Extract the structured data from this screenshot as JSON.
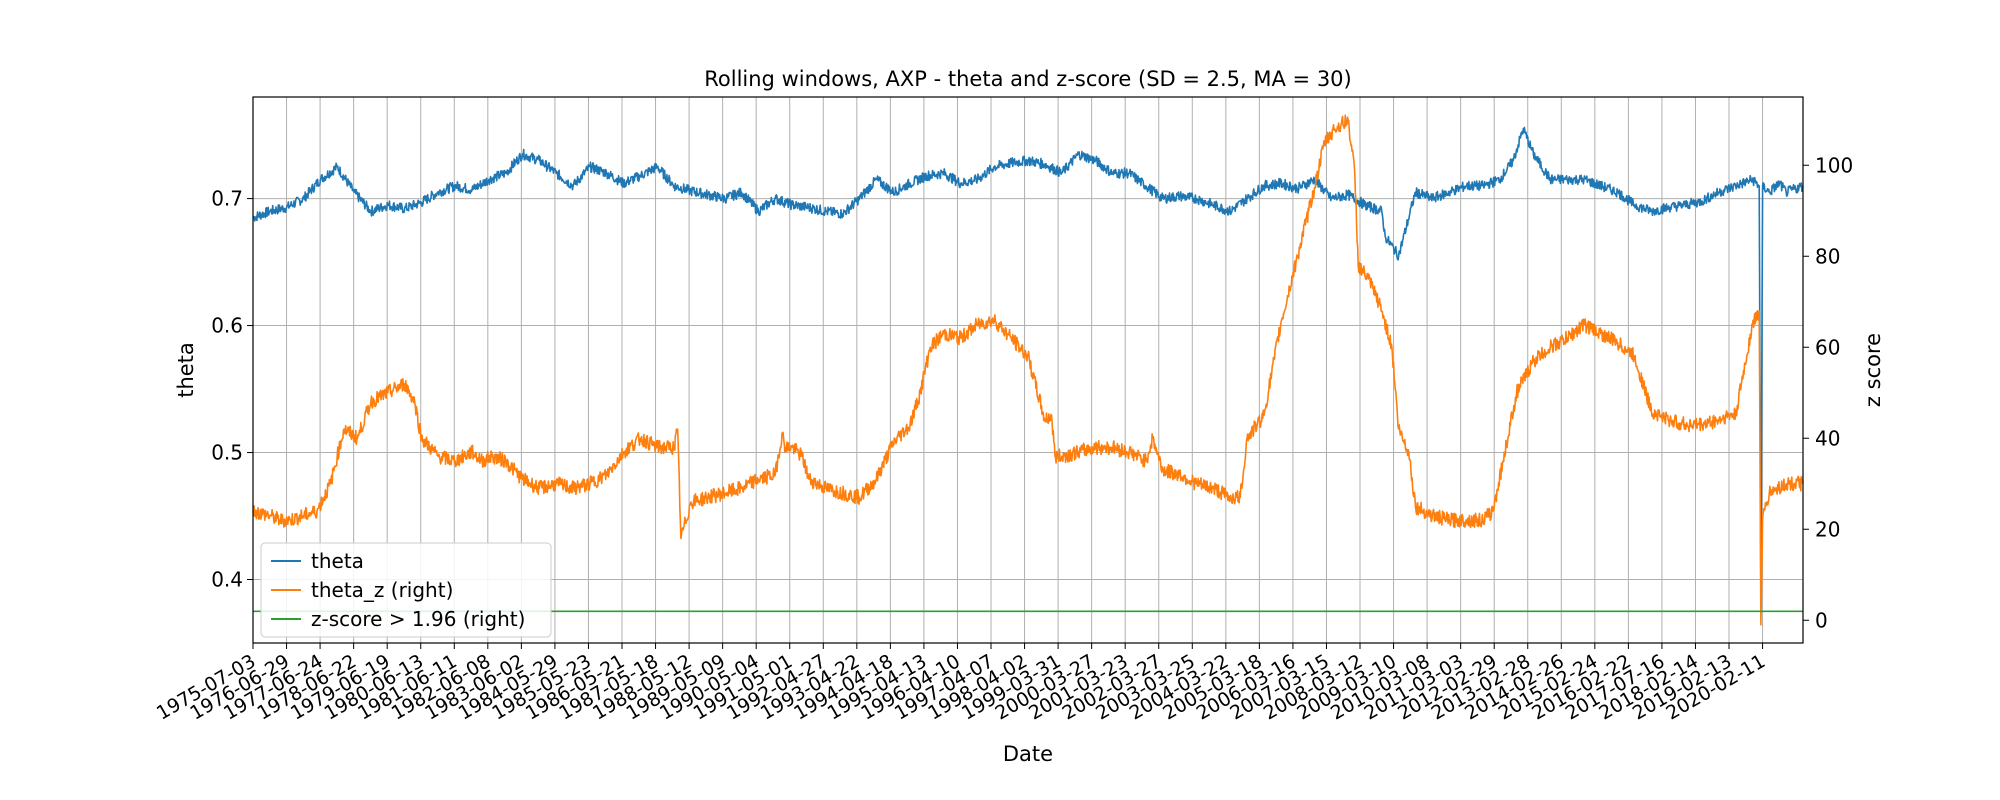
{
  "chart_data": {
    "type": "line",
    "title": "Rolling windows, AXP - theta and z-score (SD = 2.5, MA = 30)",
    "xlabel": "Date",
    "ylabel_left": "theta",
    "ylabel_right": "z score",
    "grid": true,
    "legend_position": "lower-left",
    "ylim_left": [
      0.35,
      0.78
    ],
    "ylim_right": [
      -5,
      115
    ],
    "yticks_left": [
      0.4,
      0.5,
      0.6,
      0.7
    ],
    "yticks_left_labels": [
      "0.4",
      "0.5",
      "0.6",
      "0.7"
    ],
    "yticks_right": [
      0,
      20,
      40,
      60,
      80,
      100
    ],
    "yticks_right_labels": [
      "0",
      "20",
      "40",
      "60",
      "80",
      "100"
    ],
    "xticks": [
      "1975-07-03",
      "1976-06-29",
      "1977-06-24",
      "1978-06-22",
      "1979-06-19",
      "1980-06-13",
      "1981-06-11",
      "1982-06-08",
      "1983-06-02",
      "1984-05-29",
      "1985-05-23",
      "1986-05-21",
      "1987-05-18",
      "1988-05-12",
      "1989-05-09",
      "1990-05-04",
      "1991-05-01",
      "1992-04-27",
      "1993-04-22",
      "1994-04-18",
      "1995-04-13",
      "1996-04-10",
      "1997-04-07",
      "1998-04-02",
      "1999-03-31",
      "2000-03-27",
      "2001-03-23",
      "2002-03-27",
      "2003-03-25",
      "2004-03-22",
      "2005-03-18",
      "2006-03-16",
      "2007-03-15",
      "2008-03-12",
      "2009-03-10",
      "2010-03-08",
      "2011-03-03",
      "2012-02-29",
      "2013-02-28",
      "2014-02-26",
      "2015-02-24",
      "2016-02-22",
      "2017-07-16",
      "2018-02-14",
      "2019-02-13",
      "2020-02-11"
    ],
    "x_range_years": [
      1975.5,
      2021.5
    ],
    "series": [
      {
        "name": "theta",
        "axis": "left",
        "color": "#1f77b4",
        "x": [
          1975.5,
          1976.0,
          1976.5,
          1977.0,
          1977.5,
          1978.0,
          1978.5,
          1979.0,
          1979.5,
          1980.0,
          1980.5,
          1981.0,
          1981.5,
          1982.0,
          1982.5,
          1983.0,
          1983.5,
          1984.0,
          1984.5,
          1985.0,
          1985.5,
          1986.0,
          1986.5,
          1987.0,
          1987.5,
          1988.0,
          1988.5,
          1989.0,
          1989.5,
          1990.0,
          1990.5,
          1991.0,
          1991.5,
          1992.0,
          1992.5,
          1993.0,
          1993.5,
          1994.0,
          1994.5,
          1995.0,
          1995.5,
          1996.0,
          1996.5,
          1997.0,
          1997.5,
          1998.0,
          1998.5,
          1999.0,
          1999.5,
          2000.0,
          2000.5,
          2001.0,
          2001.5,
          2002.0,
          2002.5,
          2003.0,
          2003.5,
          2004.0,
          2004.5,
          2005.0,
          2005.5,
          2006.0,
          2006.5,
          2007.0,
          2007.5,
          2008.0,
          2008.5,
          2009.0,
          2009.1,
          2009.5,
          2010.0,
          2010.5,
          2011.0,
          2011.5,
          2012.0,
          2012.5,
          2012.9,
          2013.2,
          2013.5,
          2014.0,
          2014.5,
          2015.0,
          2015.5,
          2016.0,
          2016.5,
          2017.0,
          2017.5,
          2018.0,
          2018.5,
          2019.0,
          2019.5,
          2020.0,
          2020.2,
          2020.25,
          2020.3,
          2020.5,
          2020.8,
          2021.0,
          2021.5
        ],
        "y": [
          0.685,
          0.69,
          0.693,
          0.7,
          0.715,
          0.725,
          0.705,
          0.69,
          0.695,
          0.692,
          0.697,
          0.705,
          0.71,
          0.707,
          0.715,
          0.72,
          0.735,
          0.73,
          0.72,
          0.71,
          0.725,
          0.72,
          0.712,
          0.718,
          0.725,
          0.71,
          0.706,
          0.703,
          0.7,
          0.705,
          0.69,
          0.7,
          0.695,
          0.693,
          0.69,
          0.688,
          0.7,
          0.715,
          0.705,
          0.712,
          0.718,
          0.72,
          0.712,
          0.715,
          0.725,
          0.728,
          0.73,
          0.727,
          0.72,
          0.735,
          0.73,
          0.72,
          0.72,
          0.71,
          0.7,
          0.702,
          0.7,
          0.695,
          0.69,
          0.7,
          0.71,
          0.712,
          0.708,
          0.715,
          0.7,
          0.703,
          0.695,
          0.69,
          0.67,
          0.655,
          0.705,
          0.7,
          0.705,
          0.71,
          0.71,
          0.715,
          0.73,
          0.755,
          0.735,
          0.715,
          0.715,
          0.715,
          0.71,
          0.705,
          0.695,
          0.69,
          0.693,
          0.695,
          0.698,
          0.705,
          0.71,
          0.715,
          0.71,
          0.38,
          0.71,
          0.705,
          0.712,
          0.705,
          0.71
        ]
      },
      {
        "name": "theta_z (right)",
        "axis": "right",
        "color": "#ff7f0e",
        "x": [
          1975.5,
          1976.0,
          1976.3,
          1976.6,
          1977.0,
          1977.4,
          1977.8,
          1978.0,
          1978.2,
          1978.6,
          1979.0,
          1979.5,
          1980.0,
          1980.3,
          1980.5,
          1981.0,
          1981.5,
          1982.0,
          1982.3,
          1982.6,
          1983.0,
          1983.5,
          1984.0,
          1984.5,
          1985.0,
          1985.5,
          1986.0,
          1986.5,
          1987.0,
          1987.5,
          1988.0,
          1988.1,
          1988.2,
          1988.5,
          1989.0,
          1989.5,
          1990.0,
          1990.5,
          1991.0,
          1991.2,
          1991.3,
          1991.5,
          1991.8,
          1992.0,
          1992.5,
          1993.0,
          1993.5,
          1994.0,
          1994.5,
          1995.0,
          1995.3,
          1995.6,
          1996.0,
          1996.5,
          1997.0,
          1997.5,
          1998.0,
          1998.5,
          1999.0,
          1999.2,
          1999.3,
          1999.5,
          2000.0,
          2000.5,
          2001.0,
          2001.5,
          2002.0,
          2002.2,
          2002.5,
          2003.0,
          2003.5,
          2004.0,
          2004.5,
          2004.8,
          2005.0,
          2005.5,
          2006.0,
          2006.5,
          2007.0,
          2007.3,
          2007.6,
          2008.0,
          2008.2,
          2008.3,
          2008.6,
          2008.9,
          2009.0,
          2009.3,
          2009.5,
          2009.8,
          2010.0,
          2010.5,
          2011.0,
          2011.5,
          2012.0,
          2012.3,
          2012.6,
          2013.0,
          2013.5,
          2014.0,
          2014.5,
          2015.0,
          2015.5,
          2016.0,
          2016.5,
          2017.0,
          2017.5,
          2018.0,
          2018.5,
          2019.0,
          2019.3,
          2019.5,
          2020.0,
          2020.2,
          2020.25,
          2020.3,
          2020.5,
          2021.0,
          2021.5
        ],
        "y": [
          24,
          23,
          22,
          22,
          23,
          24,
          30,
          36,
          42,
          40,
          48,
          50,
          52,
          48,
          40,
          36,
          35,
          37,
          35,
          36,
          35,
          31,
          29,
          30,
          29,
          30,
          32,
          37,
          40,
          38,
          38,
          42,
          18,
          26,
          27,
          28,
          29,
          31,
          32,
          41,
          38,
          38,
          36,
          31,
          29,
          28,
          27,
          31,
          39,
          43,
          50,
          60,
          63,
          62,
          65,
          66,
          62,
          58,
          44,
          45,
          36,
          36,
          37,
          38,
          38,
          37,
          35,
          40,
          33,
          32,
          30,
          29,
          27,
          27,
          40,
          45,
          65,
          80,
          95,
          105,
          108,
          110,
          98,
          78,
          75,
          70,
          68,
          60,
          42,
          37,
          25,
          23,
          22,
          22,
          22,
          24,
          35,
          50,
          57,
          60,
          62,
          65,
          63,
          61,
          58,
          46,
          44,
          43,
          43,
          44,
          45,
          45,
          65,
          68,
          -1,
          22,
          28,
          30,
          30
        ]
      },
      {
        "name": "z-score > 1.96 (right)",
        "axis": "right",
        "color": "#2ca02c",
        "x": [
          1975.5,
          2021.5
        ],
        "y": [
          1.96,
          1.96
        ]
      }
    ]
  }
}
